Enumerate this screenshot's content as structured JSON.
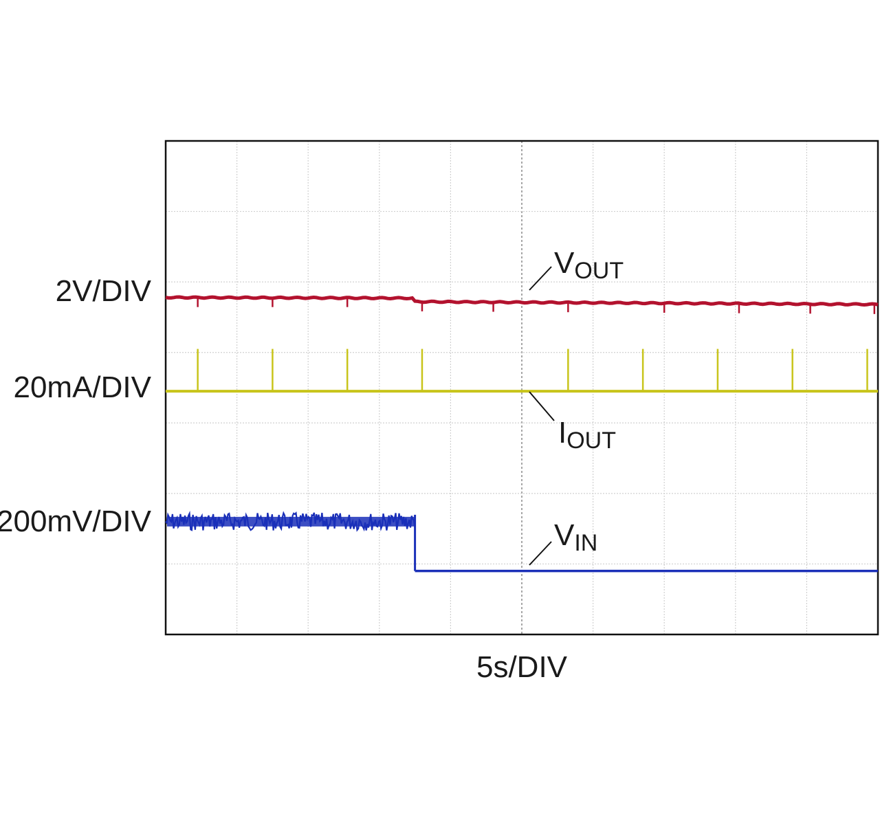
{
  "chart_data": {
    "type": "line",
    "title": "",
    "x_unit_label": "5s/DIV",
    "x_divisions": 10,
    "y_divisions": 7,
    "grid": true,
    "x": [
      0,
      1,
      2,
      3,
      3.5,
      4,
      5,
      6,
      7,
      8,
      9,
      10
    ],
    "series": [
      {
        "name": "VOUT",
        "scale_label": "2V/DIV",
        "color": "#b3122e",
        "points": [
          [
            0,
            4.8
          ],
          [
            3.5,
            4.78
          ],
          [
            3.5,
            4.72
          ],
          [
            10,
            4.68
          ]
        ],
        "dip_times_div": [
          0.45,
          1.5,
          2.55,
          3.6,
          4.6,
          5.65,
          7.0,
          8.05,
          9.05,
          9.95
        ],
        "level_div": 4.75
      },
      {
        "name": "IOUT",
        "scale_label": "20mA/DIV",
        "color": "#c8c41a",
        "level_div": 3.45,
        "pulse_times_div": [
          0.45,
          1.5,
          2.55,
          3.6,
          5.65,
          6.7,
          7.75,
          8.8,
          9.85
        ],
        "pulse_height_div": 0.6
      },
      {
        "name": "VIN",
        "scale_label": "200mV/DIV",
        "color": "#1a2fb8",
        "high_level_div": 1.6,
        "low_level_div": 0.9,
        "step_time_div": 3.5
      }
    ],
    "labels": [
      {
        "text": "V",
        "sub": "OUT"
      },
      {
        "text": "I",
        "sub": "OUT"
      },
      {
        "text": "V",
        "sub": "IN"
      }
    ]
  }
}
